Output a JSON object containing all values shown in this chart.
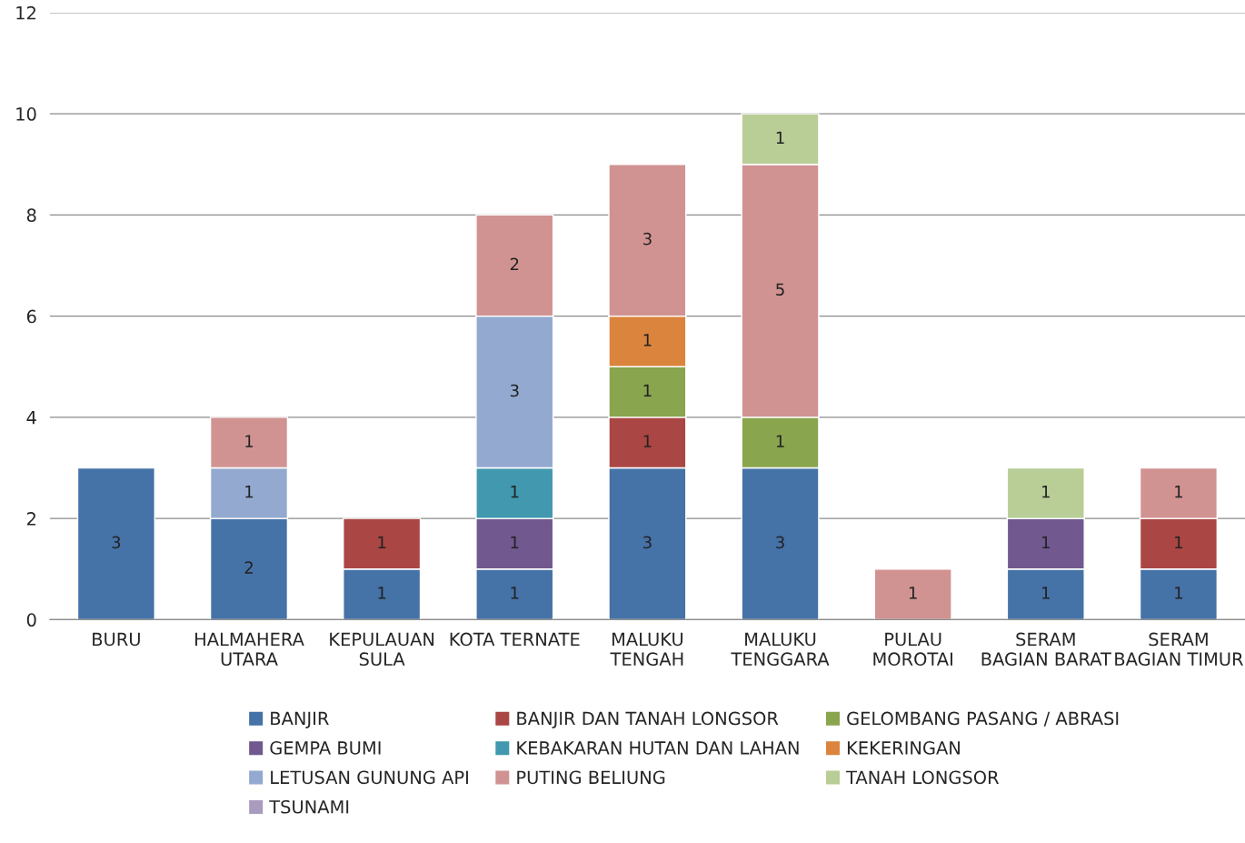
{
  "chart_data": {
    "type": "bar",
    "stacked": true,
    "data_labels": true,
    "grid": "y",
    "legend": "bottom",
    "ylim": [
      0,
      12
    ],
    "yticks": [
      0,
      2,
      4,
      6,
      8,
      10,
      12
    ],
    "categories": [
      "BURU",
      "HALMAHERA\nUTARA",
      "KEPULAUAN\nSULA",
      "KOTA TERNATE",
      "MALUKU\nTENGAH",
      "MALUKU\nTENGGARA",
      "PULAU\nMOROTAI",
      "SERAM\nBAGIAN BARAT",
      "SERAM\nBAGIAN TIMUR"
    ],
    "series": [
      {
        "name": "BANJIR",
        "color": "#4572a7",
        "values": [
          3,
          2,
          1,
          1,
          3,
          3,
          null,
          1,
          1
        ]
      },
      {
        "name": "BANJIR DAN TANAH LONGSOR",
        "color": "#aa4643",
        "values": [
          null,
          null,
          1,
          null,
          1,
          null,
          null,
          null,
          1
        ]
      },
      {
        "name": "GELOMBANG PASANG / ABRASI",
        "color": "#89a54e",
        "values": [
          null,
          null,
          null,
          null,
          1,
          1,
          null,
          null,
          null
        ]
      },
      {
        "name": "GEMPA BUMI",
        "color": "#71588f",
        "values": [
          null,
          null,
          null,
          1,
          null,
          null,
          null,
          1,
          null
        ]
      },
      {
        "name": "KEBAKARAN HUTAN DAN LAHAN",
        "color": "#4198af",
        "values": [
          null,
          null,
          null,
          1,
          null,
          null,
          null,
          null,
          null
        ]
      },
      {
        "name": "KEKERINGAN",
        "color": "#db843d",
        "values": [
          null,
          null,
          null,
          null,
          1,
          null,
          null,
          null,
          null
        ]
      },
      {
        "name": "LETUSAN GUNUNG API",
        "color": "#93a9cf",
        "values": [
          null,
          1,
          null,
          3,
          null,
          null,
          null,
          null,
          null
        ]
      },
      {
        "name": "PUTING BELIUNG",
        "color": "#d19392",
        "values": [
          null,
          1,
          null,
          2,
          3,
          5,
          1,
          null,
          1
        ]
      },
      {
        "name": "TANAH LONGSOR",
        "color": "#b9cd96",
        "values": [
          null,
          null,
          null,
          null,
          null,
          1,
          null,
          1,
          null
        ]
      },
      {
        "name": "TSUNAMI",
        "color": "#a99bbd",
        "values": [
          null,
          null,
          null,
          null,
          null,
          null,
          null,
          null,
          null
        ]
      }
    ]
  }
}
